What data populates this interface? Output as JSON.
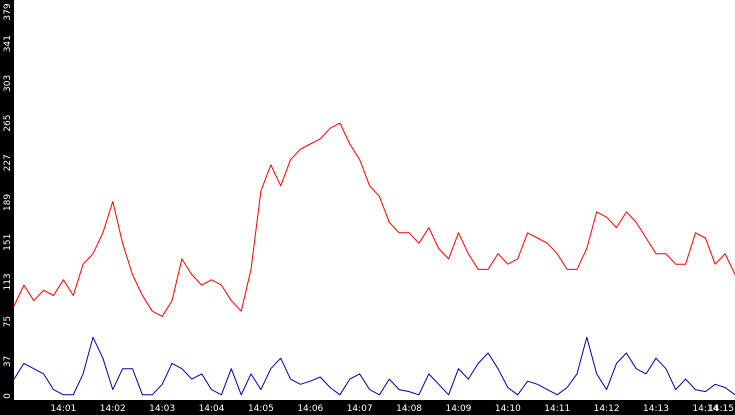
{
  "chart_data": {
    "type": "line",
    "title": "",
    "xlabel": "",
    "ylabel": "",
    "background": "#ffffff",
    "axis_bar_color": "#000000",
    "axis_text_color": "#ffffff",
    "grid": false,
    "legend": "none",
    "xlim": [
      0,
      14.6
    ],
    "ylim": [
      0,
      379
    ],
    "y_ticks": [
      0,
      37,
      75,
      113,
      151,
      189,
      227,
      265,
      303,
      341,
      379
    ],
    "y_tick_labels": [
      "0",
      "37",
      "75",
      "113",
      "151",
      "189",
      "227",
      "265",
      "303",
      "341",
      "379"
    ],
    "x_ticks": [
      1,
      2,
      3,
      4,
      5,
      6,
      7,
      8,
      9,
      10,
      11,
      12,
      13,
      14,
      15
    ],
    "x_tick_labels": [
      "14:01",
      "14:02",
      "14:03",
      "14:04",
      "14:05",
      "14:06",
      "14:07",
      "14:08",
      "14:09",
      "14:10",
      "14:11",
      "14:12",
      "14:13",
      "14:14",
      "14:15"
    ],
    "series": [
      {
        "color": "#ff0000",
        "x": [
          0,
          0.2,
          0.4,
          0.6,
          0.8,
          1.0,
          1.2,
          1.4,
          1.6,
          1.8,
          2.0,
          2.2,
          2.4,
          2.6,
          2.8,
          3.0,
          3.2,
          3.4,
          3.6,
          3.8,
          4.0,
          4.2,
          4.4,
          4.6,
          4.8,
          5.0,
          5.2,
          5.4,
          5.6,
          5.8,
          6.0,
          6.2,
          6.4,
          6.6,
          6.8,
          7.0,
          7.2,
          7.4,
          7.6,
          7.8,
          8.0,
          8.2,
          8.4,
          8.6,
          8.8,
          9.0,
          9.2,
          9.4,
          9.6,
          9.8,
          10.0,
          10.2,
          10.4,
          10.6,
          10.8,
          11.0,
          11.2,
          11.4,
          11.6,
          11.8,
          12.0,
          12.2,
          12.4,
          12.6,
          12.8,
          13.0,
          13.2,
          13.4,
          13.6,
          13.8,
          14.0,
          14.2,
          14.4,
          14.6
        ],
        "values": [
          90,
          110,
          95,
          105,
          100,
          115,
          100,
          130,
          140,
          160,
          190,
          150,
          120,
          100,
          85,
          80,
          95,
          135,
          120,
          110,
          115,
          110,
          95,
          85,
          125,
          200,
          225,
          205,
          230,
          240,
          245,
          250,
          260,
          265,
          245,
          230,
          205,
          195,
          170,
          160,
          160,
          150,
          165,
          145,
          135,
          160,
          140,
          125,
          125,
          140,
          130,
          135,
          160,
          155,
          150,
          140,
          125,
          125,
          145,
          180,
          175,
          165,
          180,
          170,
          155,
          140,
          140,
          130,
          130,
          160,
          155,
          130,
          140,
          120
        ]
      },
      {
        "color": "#0000aa",
        "x": [
          0,
          0.2,
          0.4,
          0.6,
          0.8,
          1.0,
          1.2,
          1.4,
          1.6,
          1.8,
          2.0,
          2.2,
          2.4,
          2.6,
          2.8,
          3.0,
          3.2,
          3.4,
          3.6,
          3.8,
          4.0,
          4.2,
          4.4,
          4.6,
          4.8,
          5.0,
          5.2,
          5.4,
          5.6,
          5.8,
          6.0,
          6.2,
          6.4,
          6.6,
          6.8,
          7.0,
          7.2,
          7.4,
          7.6,
          7.8,
          8.0,
          8.2,
          8.4,
          8.6,
          8.8,
          9.0,
          9.2,
          9.4,
          9.6,
          9.8,
          10.0,
          10.2,
          10.4,
          10.6,
          10.8,
          11.0,
          11.2,
          11.4,
          11.6,
          11.8,
          12.0,
          12.2,
          12.4,
          12.6,
          12.8,
          13.0,
          13.2,
          13.4,
          13.6,
          13.8,
          14.0,
          14.2,
          14.4,
          14.6
        ],
        "values": [
          20,
          35,
          30,
          25,
          10,
          5,
          5,
          25,
          60,
          40,
          10,
          30,
          30,
          5,
          5,
          15,
          35,
          30,
          20,
          25,
          10,
          5,
          30,
          5,
          25,
          10,
          30,
          40,
          20,
          15,
          18,
          22,
          12,
          5,
          20,
          25,
          10,
          5,
          20,
          10,
          8,
          5,
          25,
          15,
          5,
          30,
          20,
          35,
          45,
          30,
          12,
          5,
          18,
          15,
          10,
          5,
          12,
          25,
          60,
          25,
          10,
          35,
          45,
          30,
          25,
          40,
          30,
          10,
          20,
          10,
          8,
          15,
          12,
          5
        ]
      }
    ]
  }
}
